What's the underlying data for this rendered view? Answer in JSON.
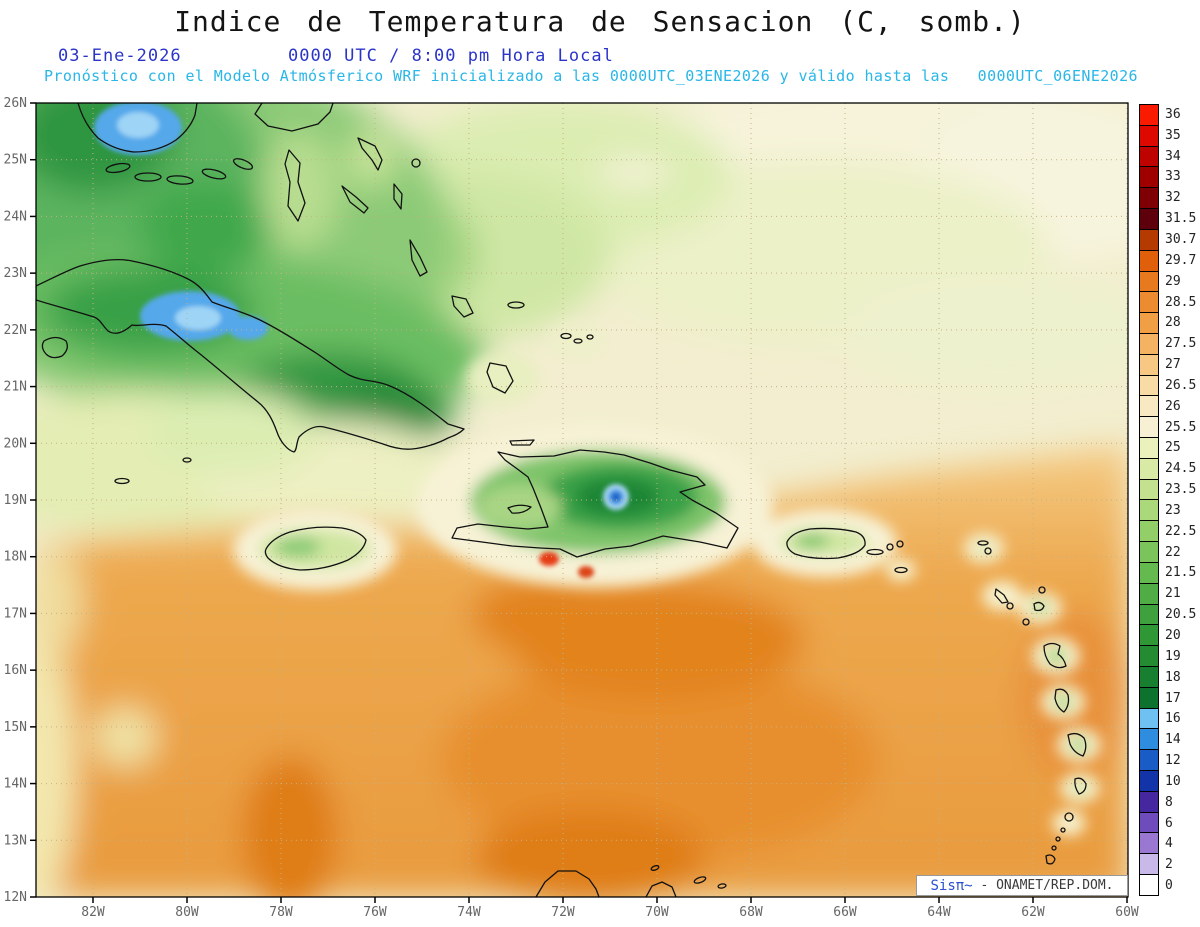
{
  "header": {
    "title": "Indice de Temperatura de Sensacion (C, somb.)",
    "date": "03-Ene-2026",
    "time": "0000 UTC / 8:00 pm Hora Local",
    "model_line": "Pronóstico con el Modelo Atmósferico WRF inicializado a las 0000UTC_03ENE2026 y válido hasta las   0000UTC_06ENE2026"
  },
  "attribution": {
    "brand": "Sisπ~",
    "text": " - ONAMET/REP.DOM."
  },
  "axes": {
    "lat_labels": [
      "26N",
      "25N",
      "24N",
      "23N",
      "22N",
      "21N",
      "20N",
      "19N",
      "18N",
      "17N",
      "16N",
      "15N",
      "14N",
      "13N",
      "12N"
    ],
    "lon_labels": [
      "82W",
      "80W",
      "78W",
      "76W",
      "74W",
      "72W",
      "70W",
      "68W",
      "66W",
      "64W",
      "62W",
      "60W"
    ]
  },
  "legend": {
    "units": "C",
    "entries": [
      {
        "label": "36",
        "color": "#fa1a00"
      },
      {
        "label": "35",
        "color": "#dd0900"
      },
      {
        "label": "34",
        "color": "#be0200"
      },
      {
        "label": "33",
        "color": "#9e0000"
      },
      {
        "label": "32",
        "color": "#7e0004"
      },
      {
        "label": "31.5",
        "color": "#5e000c"
      },
      {
        "label": "30.7",
        "color": "#b53a00"
      },
      {
        "label": "29.7",
        "color": "#df5f0a"
      },
      {
        "label": "29",
        "color": "#e7791e"
      },
      {
        "label": "28.5",
        "color": "#ec8b2f"
      },
      {
        "label": "28",
        "color": "#f09f44"
      },
      {
        "label": "27.5",
        "color": "#f3b362"
      },
      {
        "label": "27",
        "color": "#f6c883"
      },
      {
        "label": "26.5",
        "color": "#f8dba5"
      },
      {
        "label": "26",
        "color": "#f9e9c2"
      },
      {
        "label": "25.5",
        "color": "#f7f0d4"
      },
      {
        "label": "25",
        "color": "#eaf1bd"
      },
      {
        "label": "24.5",
        "color": "#d8eaa5"
      },
      {
        "label": "23.5",
        "color": "#c3e18f"
      },
      {
        "label": "23",
        "color": "#abd87b"
      },
      {
        "label": "22.5",
        "color": "#93cf69"
      },
      {
        "label": "22",
        "color": "#7bc45b"
      },
      {
        "label": "21.5",
        "color": "#64b94f"
      },
      {
        "label": "21",
        "color": "#50ad46"
      },
      {
        "label": "20.5",
        "color": "#3ea13e"
      },
      {
        "label": "20",
        "color": "#309737"
      },
      {
        "label": "19",
        "color": "#248b33"
      },
      {
        "label": "18",
        "color": "#187f30"
      },
      {
        "label": "17",
        "color": "#0d722d"
      },
      {
        "label": "16",
        "color": "#6fc1f2"
      },
      {
        "label": "14",
        "color": "#2f8de0"
      },
      {
        "label": "12",
        "color": "#1a5cc6"
      },
      {
        "label": "10",
        "color": "#1334a8"
      },
      {
        "label": "8",
        "color": "#45279f"
      },
      {
        "label": "6",
        "color": "#6f4cbb"
      },
      {
        "label": "4",
        "color": "#9a78d2"
      },
      {
        "label": "2",
        "color": "#c9b9e8"
      },
      {
        "label": "0",
        "color": "#ffffff"
      }
    ]
  },
  "colors": {
    "title_text": "#141414",
    "datetime_text": "#2a35c8",
    "model_text": "#29b6e8",
    "axis_text": "#666666",
    "attribution_brand": "#2a4fd0",
    "grid": "#c3b183"
  },
  "chart_data": {
    "type": "heatmap",
    "title": "Indice de Temperatura de Sensacion (C, somb.)",
    "units": "C",
    "datetime": "03-Ene-2026 0000 UTC / 8:00 pm Hora Local",
    "model": "WRF",
    "init_time": "0000UTC_03ENE2026",
    "valid_until": "0000UTC_06ENE2026",
    "region": "Caribbean: Cuba, Jamaica, Hispaniola, Puerto Rico, Bahamas, Lesser Antilles, south Florida",
    "lat_ticks": [
      "26N",
      "25N",
      "24N",
      "23N",
      "22N",
      "21N",
      "20N",
      "19N",
      "18N",
      "17N",
      "16N",
      "15N",
      "14N",
      "13N",
      "12N"
    ],
    "lon_ticks": [
      "82W",
      "80W",
      "78W",
      "76W",
      "74W",
      "72W",
      "70W",
      "68W",
      "66W",
      "64W",
      "62W",
      "60W"
    ],
    "legend_levels": [
      "36",
      "35",
      "34",
      "33",
      "32",
      "31.5",
      "30.7",
      "29.7",
      "29",
      "28.5",
      "28",
      "27.5",
      "27",
      "26.5",
      "26",
      "25.5",
      "25",
      "24.5",
      "23.5",
      "23",
      "22.5",
      "22",
      "21.5",
      "21",
      "20.5",
      "20",
      "19",
      "18",
      "17",
      "16",
      "14",
      "12",
      "10",
      "8",
      "6",
      "4",
      "2",
      "0"
    ],
    "legend_position": "right",
    "grid": true,
    "approx_field_readings": [
      {
        "location": "South Florida tip / west-central Cuba cold pools",
        "value_c": "14-16"
      },
      {
        "location": "Cuba interior highlands",
        "value_c": "17-20"
      },
      {
        "location": "Cuba and northwest map area general",
        "value_c": "20-24"
      },
      {
        "location": "Atlantic band north of the islands (22N-26N east half)",
        "value_c": "25-27"
      },
      {
        "location": "Hispaniola interior (Cordillera Central)",
        "value_c": "16-20"
      },
      {
        "location": "Hispaniola cold core near 19N 70.5W",
        "value_c": "10-14"
      },
      {
        "location": "Caribbean Sea (southern half of map)",
        "value_c": "28-29.7"
      },
      {
        "location": "Hot spots along southern Hispaniola coast",
        "value_c": "30.7-33"
      },
      {
        "location": "Jamaica and Puerto Rico interiors",
        "value_c": "22-25"
      }
    ]
  }
}
